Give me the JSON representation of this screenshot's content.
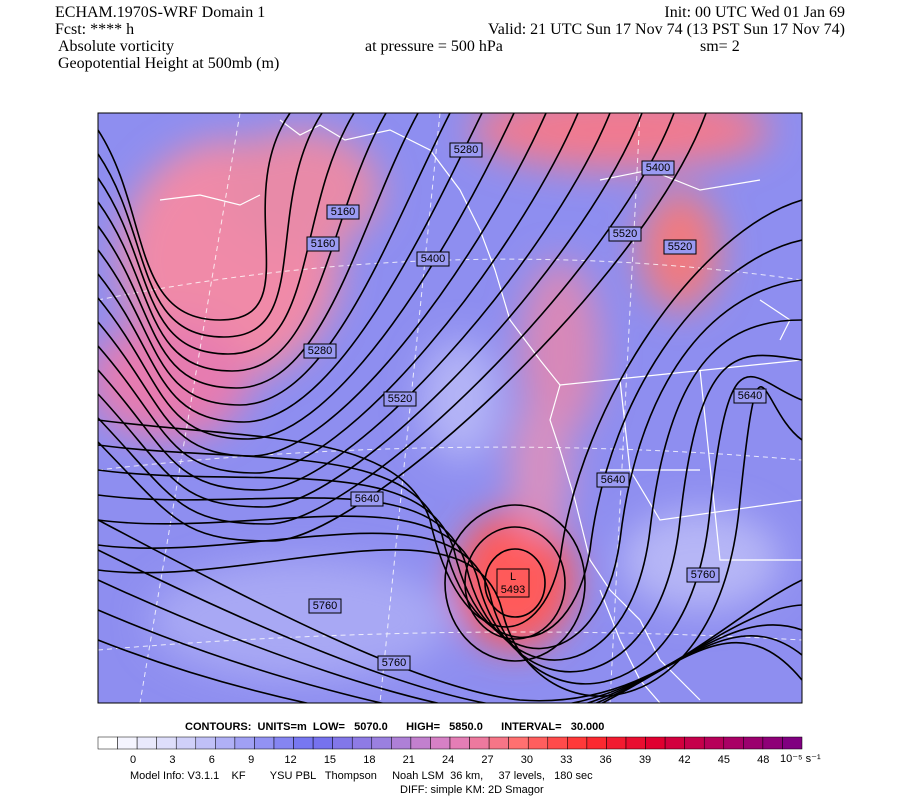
{
  "header": {
    "model": "ECHAM.1970S-WRF Domain 1",
    "fcst": "Fcst: **** h",
    "field1": "Absolute vorticity",
    "field2": "Geopotential Height at 500mb (m)",
    "init": "Init: 00 UTC Wed 01 Jan 69",
    "valid": "Valid: 21 UTC Sun 17 Nov 74 (13 PST Sun 17 Nov 74)",
    "pressure": "at pressure =  500 hPa",
    "smoothing": "sm= 2"
  },
  "map": {
    "contour_labels": [
      5280,
      5400,
      5160,
      5160,
      5520,
      5520,
      5400,
      5280,
      5520,
      5640,
      5640,
      5640,
      5760,
      5760,
      5760
    ],
    "low": {
      "symbol": "L",
      "value": 5493
    }
  },
  "footer": {
    "contours": "CONTOURS:  UNITS=m  LOW=   5070.0      HIGH=   5850.0      INTERVAL=   30.000",
    "model_info": "Model Info: V3.1.1    KF        YSU PBL   Thompson     Noah LSM  36 km,     37 levels,   180 sec",
    "diff": "DIFF: simple KM: 2D Smagor"
  },
  "colorbar": {
    "ticks": [
      0,
      3,
      6,
      9,
      12,
      15,
      18,
      21,
      24,
      27,
      30,
      33,
      36,
      39,
      42,
      45,
      48
    ],
    "unit": "10⁻⁵ s⁻¹",
    "colors": [
      "#ffffff",
      "#d8d8fa",
      "#a0a0f4",
      "#7070f0",
      "#9a80e0",
      "#e080c0",
      "#ff7070",
      "#ff3030",
      "#e00030",
      "#b00060",
      "#800080"
    ]
  }
}
